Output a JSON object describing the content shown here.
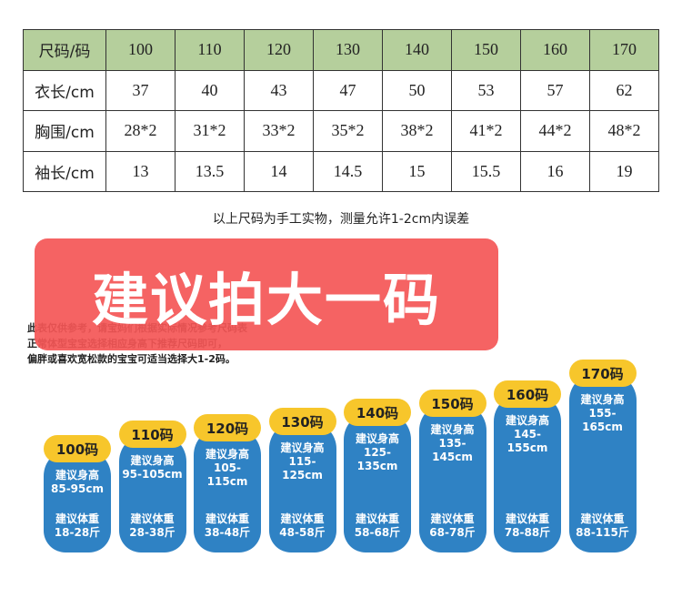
{
  "table": {
    "header": [
      "尺码/码",
      "100",
      "110",
      "120",
      "130",
      "140",
      "150",
      "160",
      "170"
    ],
    "rows": [
      [
        "衣长/cm",
        "37",
        "40",
        "43",
        "47",
        "50",
        "53",
        "57",
        "62"
      ],
      [
        "胸围/cm",
        "28*2",
        "31*2",
        "33*2",
        "35*2",
        "38*2",
        "41*2",
        "44*2",
        "48*2"
      ],
      [
        "袖长/cm",
        "13",
        "13.5",
        "14",
        "14.5",
        "15",
        "15.5",
        "16",
        "19"
      ]
    ]
  },
  "note": "以上尺码为手工实物，测量允许1-2cm内误差",
  "banner": "建议拍大一码",
  "tips": [
    "此表仅供参考，请宝妈们根据实际情况参考尺码表",
    "正常体型宝宝选择相应身高下推荐尺码即可，",
    "偏胖或喜欢宽松款的宝宝可适当选择大1-2码。"
  ],
  "sizes": [
    {
      "size": "100码",
      "height_label": "建议身高",
      "height": "85-95cm",
      "weight_label": "建议体重",
      "weight": "18-28斤"
    },
    {
      "size": "110码",
      "height_label": "建议身高",
      "height": "95-105cm",
      "weight_label": "建议体重",
      "weight": "28-38斤"
    },
    {
      "size": "120码",
      "height_label": "建议身高",
      "height": "105-115cm",
      "weight_label": "建议体重",
      "weight": "38-48斤"
    },
    {
      "size": "130码",
      "height_label": "建议身高",
      "height": "115-125cm",
      "weight_label": "建议体重",
      "weight": "48-58斤"
    },
    {
      "size": "140码",
      "height_label": "建议身高",
      "height": "125-135cm",
      "weight_label": "建议体重",
      "weight": "58-68斤"
    },
    {
      "size": "150码",
      "height_label": "建议身高",
      "height": "135-145cm",
      "weight_label": "建议体重",
      "weight": "68-78斤"
    },
    {
      "size": "160码",
      "height_label": "建议身高",
      "height": "145-155cm",
      "weight_label": "建议体重",
      "weight": "78-88斤"
    },
    {
      "size": "170码",
      "height_label": "建议身高",
      "height": "155-165cm",
      "weight_label": "建议体重",
      "weight": "88-115斤"
    }
  ]
}
